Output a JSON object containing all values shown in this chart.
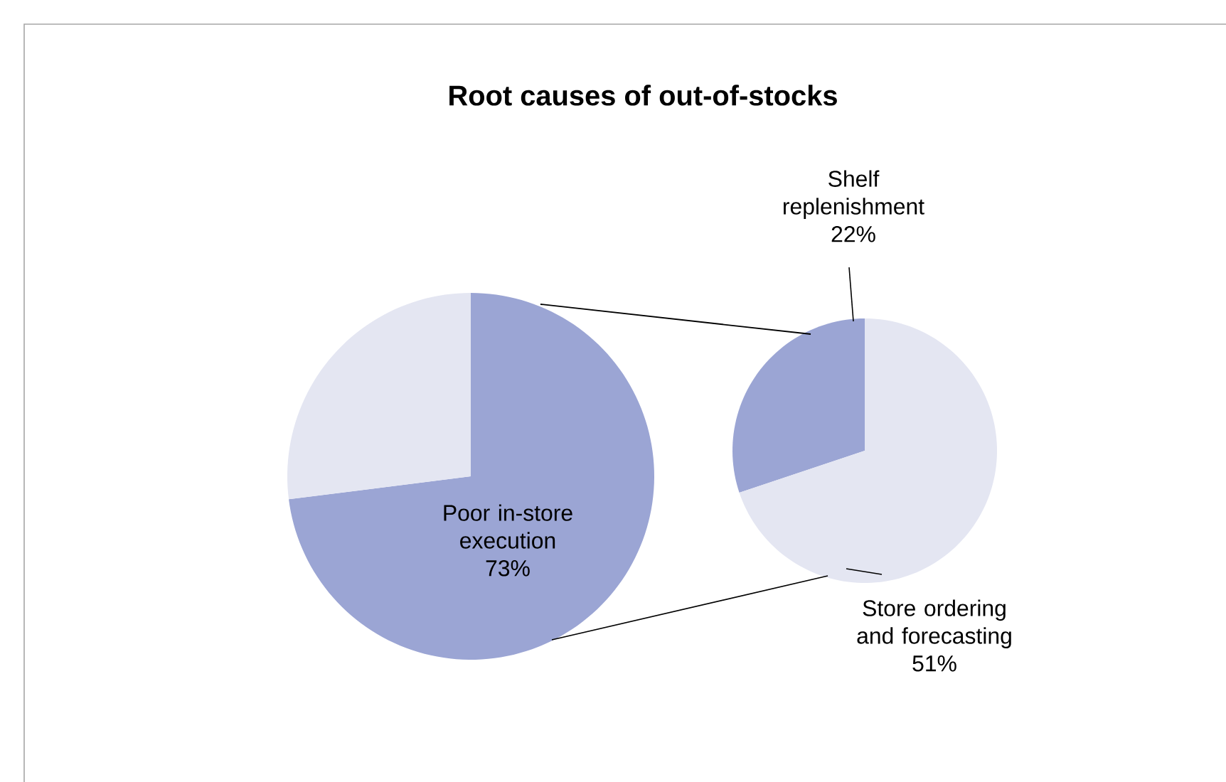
{
  "chart_data": [
    {
      "type": "pie",
      "title": "Root causes of out-of-stocks",
      "categories": [
        "Poor in-store execution",
        null
      ],
      "values": [
        73,
        27
      ],
      "value_labels": [
        "73%",
        null
      ],
      "colors": [
        "#9ba5d4",
        "#e4e6f2"
      ]
    },
    {
      "type": "pie",
      "categories": [
        "Shelf replenishment",
        "Store ordering and forecasting"
      ],
      "values": [
        22,
        51
      ],
      "value_labels": [
        "22%",
        "51%"
      ],
      "colors": [
        "#9ba5d4",
        "#e4e6f2"
      ]
    }
  ]
}
